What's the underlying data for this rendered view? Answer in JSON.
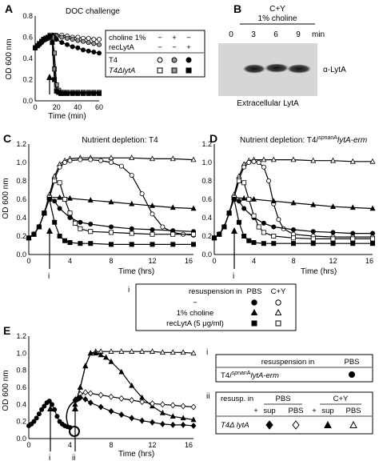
{
  "panels": {
    "A": {
      "letter": "A",
      "title": "DOC challenge",
      "xlabel": "Time (min)",
      "ylabel": "OD 600 nm",
      "xticks": [
        "0",
        "20",
        "40",
        "60"
      ],
      "yticks": [
        "0.0",
        "0.2",
        "0.4",
        "0.6",
        "0.8"
      ],
      "legend": {
        "rows": [
          {
            "label": "choline 1%",
            "marks": [
              "−",
              "+",
              "−"
            ]
          },
          {
            "label": "recLytA",
            "marks": [
              "−",
              "−",
              "+"
            ]
          }
        ],
        "strains": [
          "T4",
          "T4ΔlytA"
        ]
      }
    },
    "B": {
      "letter": "B",
      "header1": "C+Y",
      "header2": "1% choline",
      "times": [
        "0",
        "3",
        "6",
        "9"
      ],
      "time_unit": "min",
      "band_label": "α-LytA",
      "caption": "Extracellular LytA"
    },
    "C": {
      "letter": "C",
      "title": "Nutrient depletion: T4",
      "xlabel": "Time (hrs)",
      "ylabel": "OD 600 nm",
      "xticks": [
        "0",
        "4",
        "8",
        "12",
        "16"
      ],
      "yticks": [
        "0.0",
        "0.2",
        "0.4",
        "0.6",
        "0.8",
        "1.0",
        "1.2"
      ],
      "arrow_label": "i"
    },
    "D": {
      "letter": "D",
      "title_prefix": "Nutrient depletion: T4/",
      "title_sup1": "sp",
      "title_sup2": "nanA",
      "title_suffix": "lytA-erm",
      "xlabel": "Time (hrs)",
      "xticks": [
        "0",
        "4",
        "8",
        "12",
        "16"
      ],
      "yticks": [
        "0.0",
        "0.2",
        "0.4",
        "0.6",
        "0.8",
        "1.0",
        "1.2"
      ],
      "arrow_label": "i"
    },
    "legend_i": {
      "index": "i",
      "header": "resuspension in",
      "col1": "PBS",
      "col2": "C+Y",
      "rows": [
        {
          "label": "−"
        },
        {
          "label": "1% choline"
        },
        {
          "label": "recLytA (5 μg/ml)"
        }
      ]
    },
    "E": {
      "letter": "E",
      "xlabel": "Time (hrs)",
      "ylabel": "OD 600 nm",
      "xticks": [
        "0",
        "4",
        "8",
        "12",
        "16"
      ],
      "yticks": [
        "0.0",
        "0.2",
        "0.4",
        "0.6",
        "0.8",
        "1.0",
        "1.2"
      ],
      "arrow_i": "i",
      "arrow_ii": "ii",
      "legend_i": {
        "index": "i",
        "header": "resuspension in",
        "col": "PBS",
        "strain_prefix": "T4/",
        "strain_sup1": "sp",
        "strain_sup2": "nanA",
        "strain_suffix": "lytA-erm"
      },
      "legend_ii": {
        "index": "ii",
        "header": "resusp. in",
        "group1": "PBS",
        "group2": "C+Y",
        "subcols": [
          "+",
          "sup",
          "PBS",
          "+",
          "sup",
          "PBS"
        ],
        "strain": "T4Δ lytA"
      }
    }
  },
  "chart_data": [
    {
      "panel": "A",
      "type": "line",
      "title": "DOC challenge",
      "xlabel": "Time (min)",
      "ylabel": "OD 600 nm",
      "xlim": [
        0,
        60
      ],
      "ylim": [
        0,
        0.8
      ],
      "series": [
        {
          "marker": "open-circle",
          "x": [
            0,
            2,
            4,
            6,
            8,
            10,
            12,
            14,
            16,
            18,
            20,
            25,
            30,
            35,
            40,
            45,
            50,
            55,
            60
          ],
          "y": [
            0.5,
            0.52,
            0.54,
            0.56,
            0.57,
            0.58,
            0.59,
            0.6,
            0.62,
            0.62,
            0.62,
            0.62,
            0.61,
            0.6,
            0.6,
            0.59,
            0.59,
            0.58,
            0.58
          ]
        },
        {
          "marker": "grey-circle",
          "x": [
            0,
            2,
            4,
            6,
            8,
            10,
            12,
            14,
            16,
            18,
            20,
            25,
            30,
            35,
            40,
            45,
            50,
            55,
            60
          ],
          "y": [
            0.5,
            0.52,
            0.54,
            0.55,
            0.57,
            0.58,
            0.6,
            0.61,
            0.62,
            0.62,
            0.61,
            0.6,
            0.59,
            0.58,
            0.57,
            0.56,
            0.55,
            0.54,
            0.53
          ]
        },
        {
          "marker": "filled-circle",
          "x": [
            0,
            2,
            4,
            6,
            8,
            10,
            12,
            14,
            16,
            18,
            20,
            25,
            30,
            35,
            40,
            45,
            50,
            55,
            60
          ],
          "y": [
            0.5,
            0.52,
            0.53,
            0.55,
            0.57,
            0.58,
            0.59,
            0.6,
            0.62,
            0.6,
            0.58,
            0.55,
            0.53,
            0.51,
            0.5,
            0.48,
            0.47,
            0.46,
            0.45
          ]
        },
        {
          "marker": "open-square",
          "x": [
            0,
            2,
            4,
            6,
            8,
            10,
            12,
            14,
            16,
            18,
            20,
            22,
            24,
            26,
            30,
            35,
            40,
            45,
            50,
            55,
            60
          ],
          "y": [
            0.5,
            0.52,
            0.54,
            0.56,
            0.58,
            0.59,
            0.6,
            0.62,
            0.6,
            0.3,
            0.1,
            0.08,
            0.07,
            0.07,
            0.07,
            0.07,
            0.07,
            0.07,
            0.07,
            0.07,
            0.07
          ]
        },
        {
          "marker": "grey-square",
          "x": [
            0,
            2,
            4,
            6,
            8,
            10,
            12,
            14,
            16,
            18,
            20,
            22,
            24,
            26,
            30,
            35,
            40,
            45,
            50,
            55,
            60
          ],
          "y": [
            0.5,
            0.52,
            0.54,
            0.56,
            0.58,
            0.59,
            0.6,
            0.61,
            0.6,
            0.45,
            0.15,
            0.1,
            0.08,
            0.08,
            0.08,
            0.08,
            0.08,
            0.08,
            0.08,
            0.08,
            0.08
          ]
        },
        {
          "marker": "filled-square",
          "x": [
            0,
            2,
            4,
            6,
            8,
            10,
            12,
            14,
            16,
            18,
            20,
            22,
            24,
            26,
            30,
            35,
            40,
            45,
            50,
            55,
            60
          ],
          "y": [
            0.5,
            0.52,
            0.54,
            0.56,
            0.58,
            0.59,
            0.6,
            0.61,
            0.55,
            0.2,
            0.09,
            0.08,
            0.07,
            0.07,
            0.07,
            0.07,
            0.07,
            0.07,
            0.07,
            0.07,
            0.07
          ]
        }
      ]
    },
    {
      "panel": "C",
      "type": "line",
      "title": "Nutrient depletion: T4",
      "xlabel": "Time (hrs)",
      "ylabel": "OD 600 nm",
      "xlim": [
        0,
        16
      ],
      "ylim": [
        0,
        1.2
      ],
      "series": [
        {
          "marker": "open-triangle",
          "x": [
            0,
            0.5,
            1,
            1.5,
            2,
            2.5,
            3,
            3.5,
            4,
            5,
            6,
            8,
            10,
            12,
            14,
            16
          ],
          "y": [
            0.18,
            0.22,
            0.3,
            0.45,
            0.65,
            0.85,
            0.98,
            1.02,
            1.04,
            1.05,
            1.05,
            1.05,
            1.05,
            1.04,
            1.04,
            1.03
          ]
        },
        {
          "marker": "open-circle",
          "x": [
            0,
            0.5,
            1,
            1.5,
            2,
            2.5,
            3,
            3.5,
            4,
            5,
            6,
            7,
            8,
            9,
            10,
            11,
            12,
            13,
            14,
            15,
            16
          ],
          "y": [
            0.18,
            0.22,
            0.3,
            0.45,
            0.62,
            0.82,
            0.95,
            1.0,
            1.02,
            1.03,
            1.03,
            1.02,
            1.0,
            0.96,
            0.86,
            0.66,
            0.44,
            0.3,
            0.24,
            0.22,
            0.21
          ]
        },
        {
          "marker": "filled-triangle",
          "x": [
            0,
            0.5,
            1,
            1.5,
            2,
            3,
            4,
            6,
            8,
            10,
            12,
            14,
            16
          ],
          "y": [
            0.18,
            0.22,
            0.3,
            0.45,
            0.62,
            0.62,
            0.61,
            0.59,
            0.57,
            0.55,
            0.53,
            0.51,
            0.5
          ]
        },
        {
          "marker": "filled-circle",
          "x": [
            0,
            0.5,
            1,
            1.5,
            2,
            2.5,
            3,
            4,
            5,
            6,
            8,
            10,
            12,
            14,
            16
          ],
          "y": [
            0.18,
            0.22,
            0.3,
            0.45,
            0.62,
            0.58,
            0.5,
            0.4,
            0.35,
            0.33,
            0.3,
            0.28,
            0.27,
            0.26,
            0.25
          ]
        },
        {
          "marker": "open-square",
          "x": [
            0,
            0.5,
            1,
            1.5,
            2,
            2.5,
            3,
            3.5,
            4,
            4.5,
            5,
            6,
            8,
            10,
            12,
            14,
            16
          ],
          "y": [
            0.18,
            0.22,
            0.3,
            0.45,
            0.62,
            0.8,
            0.78,
            0.6,
            0.45,
            0.34,
            0.28,
            0.25,
            0.24,
            0.23,
            0.22,
            0.22,
            0.22
          ]
        },
        {
          "marker": "filled-square",
          "x": [
            0,
            0.5,
            1,
            1.5,
            2,
            2.5,
            3,
            3.5,
            4,
            5,
            6,
            8,
            10,
            12,
            14,
            16
          ],
          "y": [
            0.18,
            0.22,
            0.3,
            0.45,
            0.6,
            0.35,
            0.2,
            0.15,
            0.13,
            0.12,
            0.12,
            0.11,
            0.11,
            0.11,
            0.11,
            0.11
          ]
        }
      ]
    },
    {
      "panel": "D",
      "type": "line",
      "xlabel": "Time (hrs)",
      "xlim": [
        0,
        16
      ],
      "ylim": [
        0,
        1.2
      ],
      "series": [
        {
          "marker": "open-triangle",
          "x": [
            0,
            0.5,
            1,
            1.5,
            2,
            2.5,
            3,
            3.5,
            4,
            5,
            6,
            8,
            10,
            12,
            14,
            16
          ],
          "y": [
            0.18,
            0.22,
            0.3,
            0.45,
            0.65,
            0.85,
            0.98,
            1.02,
            1.03,
            1.03,
            1.03,
            1.03,
            1.02,
            1.02,
            1.01,
            1.01
          ]
        },
        {
          "marker": "open-circle",
          "x": [
            0,
            0.5,
            1,
            1.5,
            2,
            2.5,
            3,
            3.5,
            4,
            4.5,
            5,
            5.5,
            6,
            6.5,
            7,
            8,
            10,
            12,
            14,
            16
          ],
          "y": [
            0.18,
            0.22,
            0.3,
            0.45,
            0.62,
            0.82,
            0.95,
            1.0,
            1.01,
            1.0,
            0.95,
            0.8,
            0.55,
            0.38,
            0.28,
            0.22,
            0.2,
            0.19,
            0.19,
            0.19
          ]
        },
        {
          "marker": "filled-triangle",
          "x": [
            0,
            0.5,
            1,
            1.5,
            2,
            3,
            4,
            6,
            8,
            10,
            12,
            14,
            16
          ],
          "y": [
            0.18,
            0.22,
            0.3,
            0.45,
            0.62,
            0.61,
            0.6,
            0.58,
            0.56,
            0.54,
            0.52,
            0.51,
            0.5
          ]
        },
        {
          "marker": "filled-circle",
          "x": [
            0,
            0.5,
            1,
            1.5,
            2,
            2.5,
            3,
            4,
            5,
            6,
            8,
            10,
            12,
            14,
            16
          ],
          "y": [
            0.18,
            0.22,
            0.3,
            0.45,
            0.62,
            0.58,
            0.5,
            0.4,
            0.34,
            0.3,
            0.27,
            0.25,
            0.24,
            0.23,
            0.23
          ]
        },
        {
          "marker": "open-square",
          "x": [
            0,
            0.5,
            1,
            1.5,
            2,
            2.5,
            3,
            3.5,
            4,
            4.5,
            5,
            6,
            8,
            10,
            12,
            14,
            16
          ],
          "y": [
            0.18,
            0.22,
            0.3,
            0.45,
            0.62,
            0.8,
            0.78,
            0.6,
            0.42,
            0.3,
            0.24,
            0.2,
            0.18,
            0.17,
            0.17,
            0.17,
            0.17
          ]
        },
        {
          "marker": "filled-square",
          "x": [
            0,
            0.5,
            1,
            1.5,
            2,
            2.5,
            3,
            3.5,
            4,
            5,
            6,
            8,
            10,
            12,
            14,
            16
          ],
          "y": [
            0.18,
            0.22,
            0.3,
            0.45,
            0.6,
            0.35,
            0.2,
            0.15,
            0.13,
            0.12,
            0.12,
            0.12,
            0.12,
            0.12,
            0.12,
            0.12
          ]
        }
      ]
    },
    {
      "panel": "E",
      "type": "line",
      "xlabel": "Time (hrs)",
      "ylabel": "OD 600 nm",
      "xlim": [
        0,
        16
      ],
      "ylim": [
        0,
        1.2
      ],
      "series": [
        {
          "marker": "filled-circle",
          "x": [
            0,
            0.25,
            0.5,
            0.75,
            1,
            1.25,
            1.5,
            1.75,
            2,
            2.25,
            2.5,
            2.75,
            3,
            3.25,
            3.5,
            3.75,
            4
          ],
          "y": [
            0.15,
            0.17,
            0.2,
            0.24,
            0.29,
            0.34,
            0.38,
            0.42,
            0.44,
            0.4,
            0.34,
            0.26,
            0.2,
            0.17,
            0.15,
            0.14,
            0.13
          ]
        },
        {
          "marker": "open-triangle",
          "x": [
            4.5,
            5,
            5.5,
            6,
            6.5,
            7,
            8,
            9,
            10,
            11,
            12,
            13,
            14,
            15,
            16
          ],
          "y": [
            0.4,
            0.6,
            0.85,
            1.0,
            1.02,
            1.02,
            1.02,
            1.02,
            1.02,
            1.02,
            1.02,
            1.01,
            1.01,
            1.01,
            1.0
          ]
        },
        {
          "marker": "filled-triangle",
          "x": [
            4.5,
            5,
            5.5,
            6,
            6.5,
            7,
            7.5,
            8,
            9,
            10,
            11,
            12,
            13,
            14,
            15,
            16
          ],
          "y": [
            0.4,
            0.6,
            0.85,
            1.0,
            1.0,
            0.98,
            0.95,
            0.9,
            0.78,
            0.62,
            0.48,
            0.38,
            0.3,
            0.26,
            0.24,
            0.22
          ]
        },
        {
          "marker": "open-diamond",
          "x": [
            4.5,
            5,
            5.5,
            6,
            7,
            8,
            9,
            10,
            11,
            12,
            13,
            14,
            15,
            16
          ],
          "y": [
            0.45,
            0.52,
            0.54,
            0.53,
            0.51,
            0.49,
            0.47,
            0.45,
            0.43,
            0.41,
            0.4,
            0.39,
            0.38,
            0.37
          ]
        },
        {
          "marker": "filled-diamond",
          "x": [
            4.5,
            5,
            5.5,
            6,
            7,
            8,
            9,
            10,
            11,
            12,
            13,
            14,
            15,
            16
          ],
          "y": [
            0.45,
            0.48,
            0.46,
            0.42,
            0.37,
            0.32,
            0.28,
            0.24,
            0.21,
            0.19,
            0.17,
            0.16,
            0.16,
            0.15
          ]
        }
      ]
    }
  ]
}
